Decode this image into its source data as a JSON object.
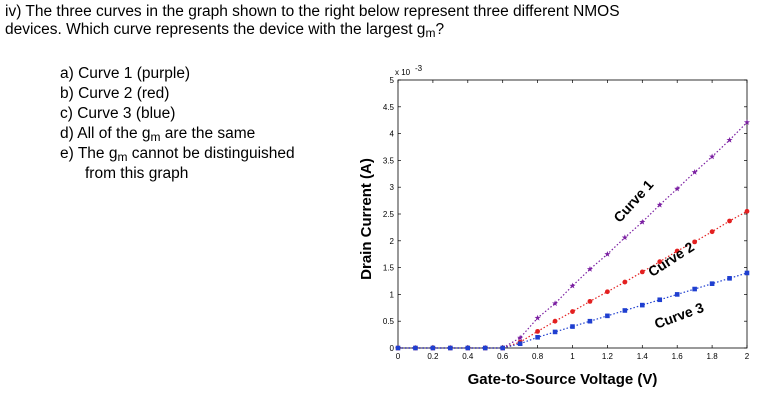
{
  "question": {
    "line1": "iv) The three curves in the graph shown to the right below represent three different NMOS",
    "line2_pre": "devices. Which curve represents the device with the largest g",
    "line2_sub": "m",
    "line2_post": "?"
  },
  "options": [
    {
      "letter": "a)",
      "pre": "Curve 1 (purple)",
      "sub": "",
      "post": ""
    },
    {
      "letter": "b)",
      "pre": "Curve 2 (red)",
      "sub": "",
      "post": ""
    },
    {
      "letter": "c)",
      "pre": "Curve 3 (blue)",
      "sub": "",
      "post": ""
    },
    {
      "letter": "d)",
      "pre": "All of the g",
      "sub": "m",
      "post": " are the same"
    },
    {
      "letter": "e)",
      "pre": "The g",
      "sub": "m",
      "post": " cannot be distinguished"
    }
  ],
  "option_e_cont": "from this graph",
  "chart_data": {
    "type": "line",
    "title": "",
    "xlabel": "Gate-to-Source Voltage (V)",
    "ylabel": "Drain Current (A)",
    "y_multiplier": "x 10",
    "y_multiplier_exp": "-3",
    "xlim": [
      0,
      2
    ],
    "ylim": [
      0,
      5
    ],
    "x_ticks": [
      "0",
      "0.2",
      "0.4",
      "0.6",
      "0.8",
      "1",
      "1.2",
      "1.4",
      "1.6",
      "1.8",
      "2"
    ],
    "y_ticks": [
      "0",
      "0.5",
      "1",
      "1.5",
      "2",
      "2.5",
      "3",
      "3.5",
      "4",
      "4.5",
      "5"
    ],
    "x": [
      0,
      0.1,
      0.2,
      0.3,
      0.4,
      0.5,
      0.6,
      0.7,
      0.8,
      0.9,
      1.0,
      1.1,
      1.2,
      1.3,
      1.4,
      1.5,
      1.6,
      1.7,
      1.8,
      1.9,
      2.0
    ],
    "series": [
      {
        "name": "Curve 1",
        "color": "#7b1fa2",
        "marker": "star",
        "values": [
          0,
          0,
          0,
          0,
          0,
          0,
          0,
          0.19,
          0.56,
          0.83,
          1.16,
          1.47,
          1.75,
          2.06,
          2.35,
          2.67,
          2.97,
          3.28,
          3.57,
          3.88,
          4.21
        ]
      },
      {
        "name": "Curve 2",
        "color": "#e32020",
        "marker": "circle",
        "values": [
          0,
          0,
          0,
          0,
          0,
          0,
          0,
          0.11,
          0.31,
          0.5,
          0.68,
          0.87,
          1.05,
          1.23,
          1.42,
          1.61,
          1.81,
          1.98,
          2.17,
          2.37,
          2.55
        ]
      },
      {
        "name": "Curve 3",
        "color": "#1f3fd0",
        "marker": "square",
        "values": [
          0,
          0,
          0,
          0,
          0,
          0,
          0,
          0.08,
          0.2,
          0.3,
          0.4,
          0.5,
          0.6,
          0.7,
          0.8,
          0.9,
          1.0,
          1.1,
          1.2,
          1.3,
          1.4
        ]
      }
    ]
  }
}
